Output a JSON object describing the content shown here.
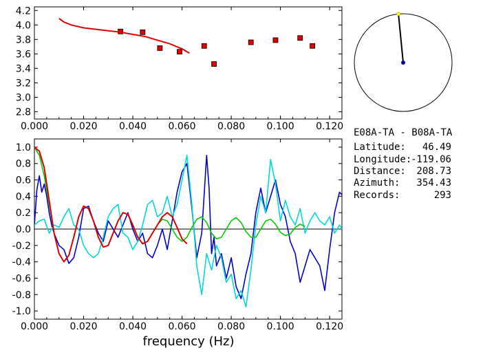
{
  "station": {
    "pair": "E08A-TA - B08A-TA",
    "fields": [
      {
        "label": "Latitude:",
        "value": "46.49"
      },
      {
        "label": "Longitude:",
        "value": "-119.06"
      },
      {
        "label": "Distance:",
        "value": "208.73"
      },
      {
        "label": "Azimuth:",
        "value": "354.43"
      },
      {
        "label": "Records:",
        "value": "293"
      }
    ]
  },
  "chart_data": [
    {
      "type": "scatter",
      "xlim": [
        0.0,
        0.125
      ],
      "ylim": [
        2.7,
        4.25
      ],
      "x_ticks": [
        "0.000",
        "0.020",
        "0.040",
        "0.060",
        "0.080",
        "0.100",
        "0.120"
      ],
      "y_ticks": [
        "2.8",
        "3.0",
        "3.2",
        "3.4",
        "3.6",
        "3.8",
        "4.0",
        "4.2"
      ],
      "grid": false,
      "series": [
        {
          "kind": "points",
          "color": "#dd0000",
          "x": [
            0.035,
            0.044,
            0.051,
            0.059,
            0.069,
            0.073,
            0.088,
            0.098,
            0.108,
            0.113
          ],
          "y": [
            3.91,
            3.9,
            3.68,
            3.63,
            3.71,
            3.46,
            3.76,
            3.79,
            3.82,
            3.71
          ]
        },
        {
          "kind": "line",
          "color": "#dd0000",
          "x": [
            0.01,
            0.012,
            0.015,
            0.02,
            0.025,
            0.03,
            0.035,
            0.04,
            0.045,
            0.05,
            0.055,
            0.06,
            0.063
          ],
          "y": [
            4.09,
            4.04,
            4.0,
            3.96,
            3.94,
            3.92,
            3.9,
            3.87,
            3.84,
            3.79,
            3.74,
            3.67,
            3.61
          ]
        }
      ]
    },
    {
      "type": "line",
      "xlabel": "frequency (Hz)",
      "xlim": [
        0.0,
        0.125
      ],
      "ylim": [
        -1.1,
        1.1
      ],
      "x_ticks": [
        "0.000",
        "0.020",
        "0.040",
        "0.060",
        "0.080",
        "0.100",
        "0.120"
      ],
      "y_ticks": [
        "1.0",
        "0.8",
        "0.6",
        "0.4",
        "0.2",
        "0.0",
        "-0.2",
        "-0.4",
        "-0.6",
        "-0.8",
        "-1.0"
      ],
      "grid": false,
      "series": [
        {
          "color": "#0000cc",
          "x": [
            0.0,
            0.001,
            0.002,
            0.003,
            0.004,
            0.005,
            0.006,
            0.007,
            0.008,
            0.01,
            0.012,
            0.014,
            0.016,
            0.018,
            0.02,
            0.022,
            0.024,
            0.026,
            0.028,
            0.03,
            0.032,
            0.034,
            0.036,
            0.038,
            0.04,
            0.042,
            0.044,
            0.046,
            0.048,
            0.05,
            0.052,
            0.054,
            0.056,
            0.058,
            0.06,
            0.062,
            0.064,
            0.066,
            0.068,
            0.07,
            0.071,
            0.072,
            0.073,
            0.074,
            0.076,
            0.078,
            0.08,
            0.082,
            0.084,
            0.086,
            0.088,
            0.09,
            0.092,
            0.094,
            0.096,
            0.098,
            0.1,
            0.102,
            0.104,
            0.106,
            0.108,
            0.11,
            0.112,
            0.114,
            0.116,
            0.118,
            0.12,
            0.122,
            0.124,
            0.125
          ],
          "y": [
            0.05,
            0.48,
            0.65,
            0.45,
            0.55,
            0.4,
            0.2,
            0.05,
            -0.05,
            -0.2,
            -0.25,
            -0.42,
            -0.35,
            -0.1,
            0.25,
            0.28,
            0.1,
            -0.05,
            -0.15,
            0.1,
            0.0,
            -0.1,
            0.05,
            0.2,
            0.0,
            -0.15,
            -0.05,
            -0.3,
            -0.35,
            -0.2,
            0.0,
            -0.25,
            0.1,
            0.45,
            0.7,
            0.8,
            0.25,
            -0.35,
            -0.05,
            0.9,
            0.5,
            -0.3,
            -0.1,
            -0.45,
            -0.3,
            -0.6,
            -0.35,
            -0.7,
            -0.85,
            -0.55,
            -0.3,
            0.2,
            0.5,
            0.2,
            0.4,
            0.6,
            0.3,
            0.15,
            -0.15,
            -0.3,
            -0.65,
            -0.45,
            -0.25,
            -0.35,
            -0.45,
            -0.75,
            -0.25,
            0.2,
            0.45,
            0.42
          ]
        },
        {
          "color": "#00d8d8",
          "x": [
            0.0,
            0.002,
            0.004,
            0.006,
            0.008,
            0.01,
            0.012,
            0.014,
            0.016,
            0.018,
            0.02,
            0.022,
            0.024,
            0.026,
            0.028,
            0.03,
            0.032,
            0.034,
            0.036,
            0.038,
            0.04,
            0.042,
            0.044,
            0.046,
            0.048,
            0.05,
            0.052,
            0.054,
            0.056,
            0.058,
            0.06,
            0.062,
            0.064,
            0.066,
            0.068,
            0.07,
            0.072,
            0.074,
            0.076,
            0.078,
            0.08,
            0.082,
            0.084,
            0.086,
            0.088,
            0.09,
            0.092,
            0.094,
            0.096,
            0.098,
            0.1,
            0.102,
            0.104,
            0.106,
            0.108,
            0.11,
            0.112,
            0.114,
            0.116,
            0.118,
            0.12,
            0.122,
            0.124,
            0.125
          ],
          "y": [
            0.05,
            0.1,
            0.12,
            -0.05,
            0.05,
            0.02,
            0.15,
            0.25,
            0.05,
            0.0,
            -0.2,
            -0.3,
            -0.35,
            -0.3,
            -0.1,
            0.15,
            0.25,
            0.3,
            -0.05,
            -0.1,
            -0.25,
            -0.15,
            0.05,
            0.3,
            0.35,
            0.15,
            0.2,
            0.4,
            0.15,
            0.3,
            0.6,
            0.9,
            0.3,
            -0.45,
            -0.8,
            -0.3,
            -0.5,
            -0.2,
            -0.35,
            -0.65,
            -0.55,
            -0.85,
            -0.75,
            -0.95,
            -0.5,
            0.05,
            0.4,
            0.2,
            0.85,
            0.55,
            0.1,
            0.35,
            0.15,
            0.05,
            0.25,
            -0.05,
            0.1,
            0.2,
            0.1,
            0.05,
            0.15,
            -0.05,
            0.05,
            0.0
          ]
        },
        {
          "color": "#00cc00",
          "x": [
            0.0,
            0.002,
            0.004,
            0.006,
            0.008,
            0.01,
            0.012,
            0.014,
            0.016,
            0.018,
            0.02,
            0.022,
            0.024,
            0.026,
            0.028,
            0.03,
            0.032,
            0.034,
            0.036,
            0.038,
            0.04,
            0.042,
            0.044,
            0.046,
            0.048,
            0.05,
            0.052,
            0.054,
            0.056,
            0.058,
            0.06,
            0.062,
            0.064,
            0.066,
            0.068,
            0.07,
            0.072,
            0.074,
            0.076,
            0.078,
            0.08,
            0.082,
            0.084,
            0.086,
            0.088,
            0.09,
            0.092,
            0.094,
            0.096,
            0.098,
            0.1,
            0.102,
            0.104,
            0.106,
            0.108,
            0.11
          ],
          "y": [
            1.0,
            0.9,
            0.65,
            0.3,
            -0.05,
            -0.3,
            -0.4,
            -0.32,
            -0.1,
            0.15,
            0.28,
            0.25,
            0.1,
            -0.1,
            -0.22,
            -0.2,
            -0.05,
            0.1,
            0.2,
            0.18,
            0.05,
            -0.1,
            -0.18,
            -0.15,
            -0.05,
            0.05,
            0.12,
            0.1,
            0.0,
            -0.1,
            -0.15,
            -0.1,
            0.02,
            0.12,
            0.15,
            0.08,
            -0.05,
            -0.12,
            -0.1,
            0.0,
            0.1,
            0.14,
            0.08,
            -0.03,
            -0.1,
            -0.1,
            0.0,
            0.1,
            0.12,
            0.06,
            -0.04,
            -0.08,
            -0.06,
            0.02,
            0.06,
            0.03
          ]
        },
        {
          "color": "#dd0000",
          "x": [
            0.0,
            0.002,
            0.004,
            0.006,
            0.008,
            0.01,
            0.012,
            0.014,
            0.016,
            0.018,
            0.02,
            0.022,
            0.024,
            0.026,
            0.028,
            0.03,
            0.032,
            0.034,
            0.036,
            0.038,
            0.04,
            0.042,
            0.044,
            0.046,
            0.048,
            0.05,
            0.052,
            0.054,
            0.056,
            0.058,
            0.06,
            0.062
          ],
          "y": [
            1.0,
            0.95,
            0.75,
            0.35,
            -0.05,
            -0.3,
            -0.4,
            -0.32,
            -0.1,
            0.15,
            0.28,
            0.25,
            0.1,
            -0.1,
            -0.22,
            -0.2,
            -0.05,
            0.1,
            0.2,
            0.18,
            0.05,
            -0.1,
            -0.18,
            -0.15,
            -0.05,
            0.05,
            0.15,
            0.2,
            0.15,
            0.02,
            -0.12,
            -0.18
          ]
        }
      ]
    },
    {
      "type": "scatter",
      "subtype": "azimuth-dial",
      "azimuth_deg": 354.43,
      "marker_colors": {
        "center": "#00009a",
        "tip": "#ffff00",
        "needle": "#000000"
      }
    }
  ]
}
